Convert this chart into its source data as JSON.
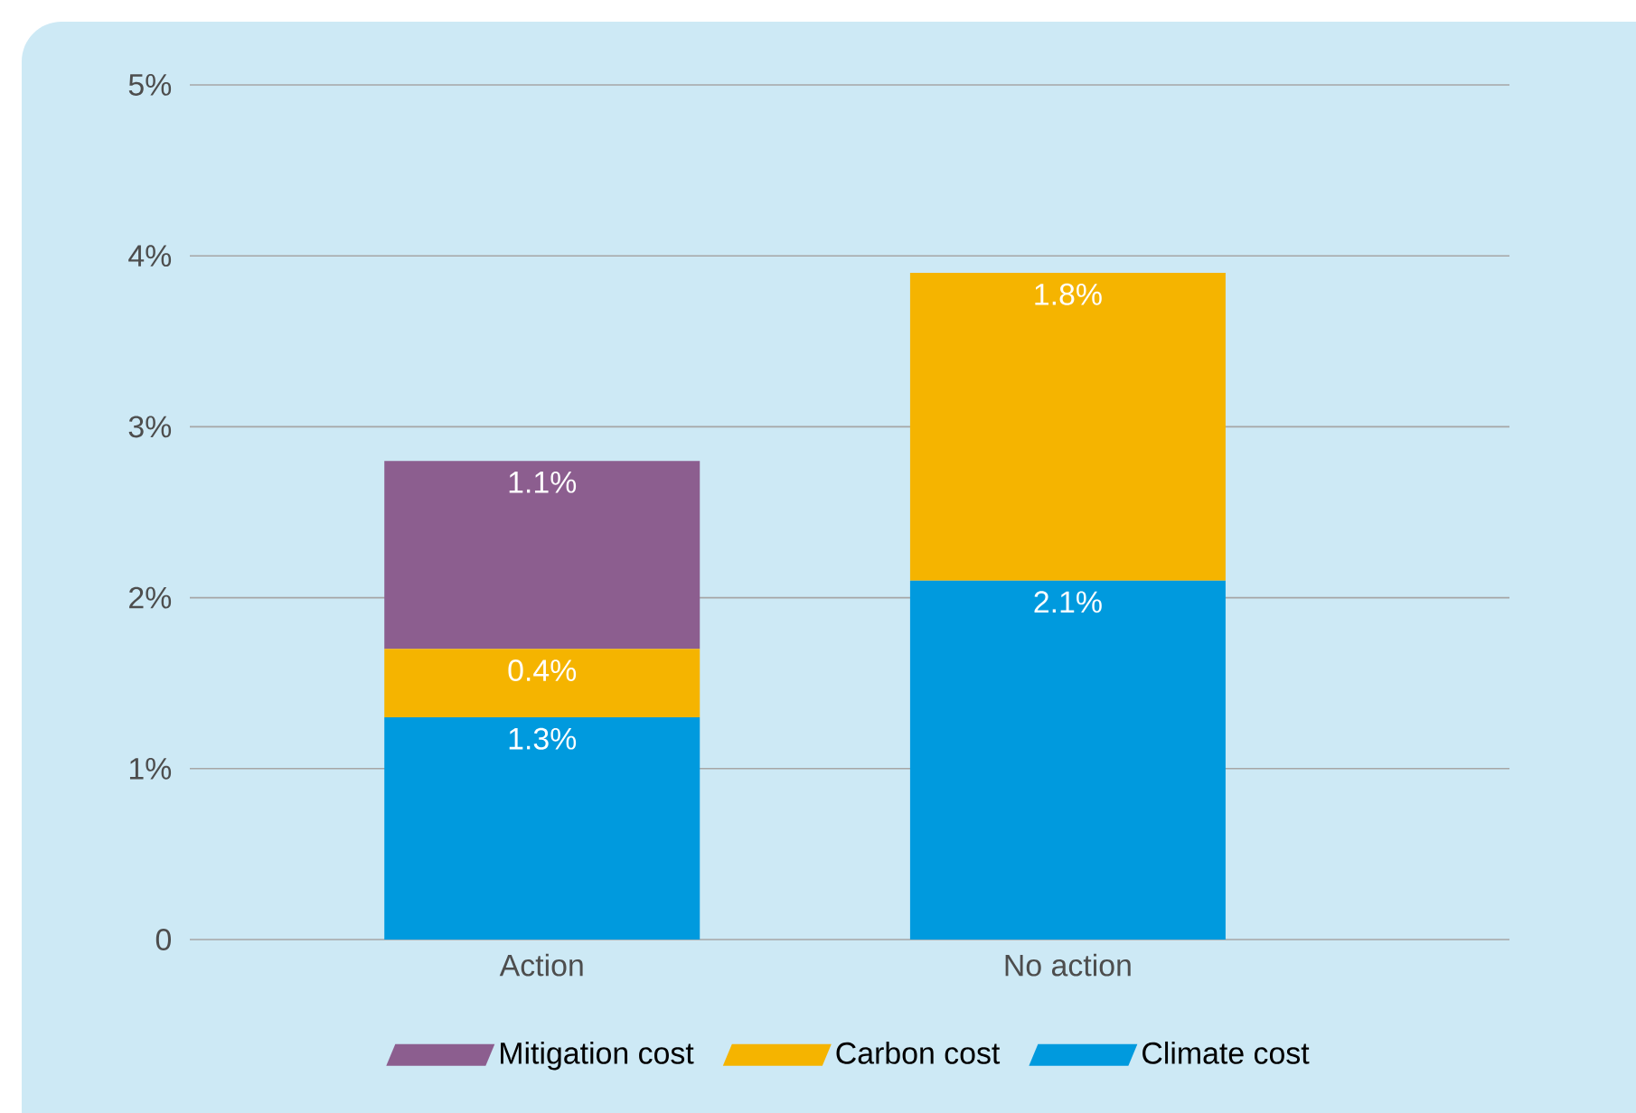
{
  "chart_data": {
    "type": "bar",
    "stacked": true,
    "categories": [
      "Action",
      "No action"
    ],
    "series": [
      {
        "name": "Climate cost",
        "color": "#009ade",
        "values": [
          1.3,
          2.1
        ],
        "value_labels": [
          "1.3%",
          "2.1%"
        ]
      },
      {
        "name": "Carbon cost",
        "color": "#f5b400",
        "values": [
          0.4,
          1.8
        ],
        "value_labels": [
          "0.4%",
          "1.8%"
        ]
      },
      {
        "name": "Mitigation cost",
        "color": "#8c5e8f",
        "values": [
          1.1,
          null
        ],
        "value_labels": [
          "1.1%",
          null
        ]
      }
    ],
    "ylim": [
      0,
      5
    ],
    "yticks": [
      0,
      {
        "value": 1,
        "label": "1%"
      },
      {
        "value": 2,
        "label": "2%"
      },
      {
        "value": 3,
        "label": "3%"
      },
      {
        "value": 4,
        "label": "4%"
      },
      {
        "value": 5,
        "label": "5%"
      }
    ],
    "grid": "y",
    "legend": "bottom"
  }
}
